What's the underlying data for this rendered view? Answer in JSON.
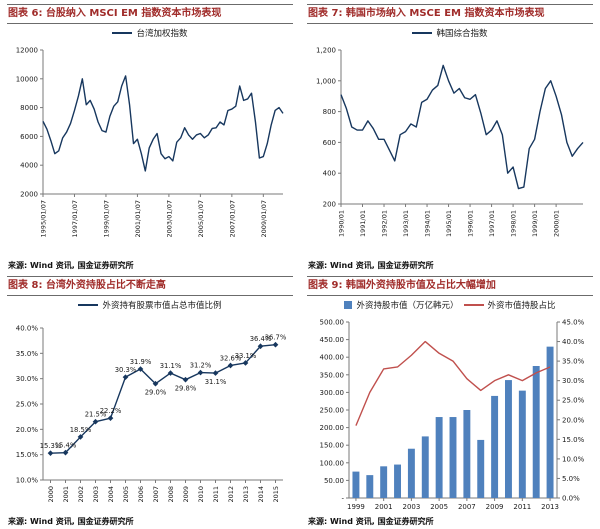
{
  "colors": {
    "title": "#A02C2A",
    "navy_line": "#17375E",
    "bar_blue": "#4F81BD",
    "red_line": "#C0504D",
    "axis": "#7a7a7a",
    "text": "#1a1a1a"
  },
  "chart_data": [
    {
      "type": "line",
      "header": "图表 6: 台股纳入 MSCI EM 指数资本市场表现",
      "title": "台股纳入 MSCI EM 指数资本市场表现",
      "legend": [
        "台湾加权指数"
      ],
      "source": "来源: Wind 资讯, 国金证券研究所",
      "x": {
        "count": 62,
        "tick_indices": [
          0,
          8,
          16,
          24,
          32,
          40,
          48,
          56
        ],
        "tick_labels": [
          "1995/01/07",
          "1997/01/07",
          "1999/01/07",
          "2001/01/07",
          "2003/01/07",
          "2005/01/07",
          "2007/01/07",
          "2009/01/07"
        ]
      },
      "y_left": {
        "lim": [
          2000,
          12000
        ],
        "tick_values": [
          2000,
          4000,
          6000,
          8000,
          10000,
          12000
        ],
        "tick_labels": [
          "2000",
          "4000",
          "6000",
          "8000",
          "10000",
          "12000"
        ]
      },
      "series": [
        {
          "name": "台湾加权指数",
          "type": "line",
          "axis": "left",
          "color": "navy_line",
          "values": [
            7050,
            6500,
            5700,
            4800,
            5000,
            5900,
            6300,
            6900,
            7800,
            8800,
            10000,
            8200,
            8500,
            7900,
            7000,
            6400,
            6300,
            7400,
            8100,
            8400,
            9500,
            10200,
            8200,
            5500,
            5800,
            4800,
            3600,
            5200,
            5800,
            6200,
            4800,
            4450,
            4600,
            4300,
            5600,
            5900,
            6600,
            6100,
            5800,
            6100,
            6200,
            5900,
            6100,
            6550,
            6600,
            7000,
            6800,
            7800,
            7900,
            8100,
            9500,
            8500,
            8600,
            9000,
            7000,
            4500,
            4600,
            5500,
            6800,
            7800,
            8000,
            7600
          ]
        }
      ]
    },
    {
      "type": "line",
      "header": "图表 7: 韩国市场纳入 MSCE EM 指数资本市场表现",
      "title": "韩国市场纳入 MSCE EM 指数资本市场表现",
      "legend": [
        "韩国综合指数"
      ],
      "source": "来源: Wind 资讯, 国金证券研究所",
      "x": {
        "count": 46,
        "tick_indices": [
          0,
          4,
          8,
          12,
          16,
          20,
          24,
          28,
          32,
          36,
          40
        ],
        "tick_labels": [
          "1990/01",
          "1991/01",
          "1992/01",
          "1993/01",
          "1994/01",
          "1995/01",
          "1996/01",
          "1997/01",
          "1998/01",
          "1999/01",
          "2000/01"
        ]
      },
      "y_left": {
        "lim": [
          200,
          1200
        ],
        "tick_values": [
          200,
          400,
          600,
          800,
          1000,
          1200
        ],
        "tick_labels": [
          "200",
          "400",
          "600",
          "800",
          "1,000",
          "1,200"
        ]
      },
      "series": [
        {
          "name": "韩国综合指数",
          "type": "line",
          "axis": "left",
          "color": "navy_line",
          "values": [
            910,
            820,
            700,
            680,
            680,
            740,
            690,
            620,
            620,
            550,
            480,
            650,
            670,
            720,
            700,
            860,
            880,
            940,
            970,
            1100,
            1000,
            920,
            950,
            890,
            880,
            910,
            790,
            650,
            680,
            740,
            650,
            400,
            440,
            300,
            310,
            560,
            620,
            800,
            950,
            1000,
            900,
            780,
            600,
            510,
            560,
            600
          ]
        }
      ]
    },
    {
      "type": "line",
      "header": "图表 8: 台湾外资持股占比不断走高",
      "title": "台湾外资持股占比不断走高",
      "legend": [
        "外资持有股票市值占总市值比例"
      ],
      "source": "来源: Wind 资讯, 国金证券研究所",
      "categories": [
        "2000",
        "2001",
        "2002",
        "2003",
        "2004",
        "2005",
        "2006",
        "2007",
        "2008",
        "2009",
        "2010",
        "2011",
        "2012",
        "2013",
        "2014",
        "2015"
      ],
      "x": {
        "count": 16,
        "tick_indices": [
          0,
          1,
          2,
          3,
          4,
          5,
          6,
          7,
          8,
          9,
          10,
          11,
          12,
          13,
          14,
          15
        ],
        "tick_labels": [
          "2000",
          "2001",
          "2002",
          "2003",
          "2004",
          "2005",
          "2006",
          "2007",
          "2008",
          "2009",
          "2010",
          "2011",
          "2012",
          "2013",
          "2014",
          "2015"
        ]
      },
      "y_left": {
        "lim": [
          10,
          40
        ],
        "tick_values": [
          10,
          15,
          20,
          25,
          30,
          35,
          40
        ],
        "tick_labels": [
          "10.0%",
          "15.0%",
          "20.0%",
          "25.0%",
          "30.0%",
          "35.0%",
          "40.0%"
        ]
      },
      "series": [
        {
          "name": "外资持有股票市值占总市值比例",
          "type": "line",
          "axis": "left",
          "color": "navy_line",
          "marker": true,
          "values": [
            15.3,
            15.4,
            18.5,
            21.5,
            22.2,
            30.3,
            31.9,
            29.0,
            31.1,
            29.8,
            31.2,
            31.1,
            32.6,
            33.1,
            36.4,
            36.7
          ],
          "labels": [
            "15.3%",
            "15.4%",
            "18.5%",
            "21.5%",
            "22.2%",
            "30.3%",
            "31.9%",
            "29.0%",
            "31.1%",
            "29.8%",
            "31.2%",
            "31.1%",
            "32.6%",
            "33.1%",
            "36.4%",
            "36.7%"
          ]
        }
      ]
    },
    {
      "type": "combo",
      "header": "图表 9: 韩国外资持股市值及占比大幅增加",
      "title": "韩国外资持股市值及占比大幅增加",
      "legend": [
        "外资持股市值（万亿韩元）",
        "外资市值持股占比"
      ],
      "source": "来源: Wind 资讯, 国金证券研究所",
      "categories": [
        "1999",
        "2000",
        "2001",
        "2002",
        "2003",
        "2004",
        "2005",
        "2006",
        "2007",
        "2008",
        "2009",
        "2010",
        "2011",
        "2012",
        "2013"
      ],
      "x": {
        "count": 15,
        "tick_indices": [
          0,
          2,
          4,
          6,
          8,
          10,
          12,
          14
        ],
        "tick_labels": [
          "1999",
          "2001",
          "2003",
          "2005",
          "2007",
          "2009",
          "2011",
          "2013"
        ]
      },
      "y_left": {
        "lim": [
          0,
          500
        ],
        "tick_values": [
          0,
          50,
          100,
          150,
          200,
          250,
          300,
          350,
          400,
          450,
          500
        ],
        "tick_labels": [
          "-",
          "50.00",
          "100.00",
          "150.00",
          "200.00",
          "250.00",
          "300.00",
          "350.00",
          "400.00",
          "450.00",
          "500.00"
        ]
      },
      "y_right": {
        "lim": [
          0,
          45
        ],
        "tick_values": [
          0,
          5,
          10,
          15,
          20,
          25,
          30,
          35,
          40,
          45
        ],
        "tick_labels": [
          "0.0%",
          "5.0%",
          "10.0%",
          "15.0%",
          "20.0%",
          "25.0%",
          "30.0%",
          "35.0%",
          "40.0%",
          "45.0%"
        ]
      },
      "series": [
        {
          "name": "外资持股市值（万亿韩元）",
          "type": "bar",
          "axis": "left",
          "color": "bar_blue",
          "values": [
            75,
            65,
            90,
            95,
            140,
            175,
            230,
            230,
            250,
            165,
            290,
            335,
            305,
            375,
            430
          ]
        },
        {
          "name": "外资市值持股占比",
          "type": "line",
          "axis": "right",
          "color": "red_line",
          "values": [
            18.5,
            27.0,
            33.0,
            33.5,
            36.5,
            40.0,
            37.0,
            35.0,
            30.5,
            27.5,
            30.0,
            31.5,
            30.0,
            32.0,
            33.5
          ]
        }
      ]
    }
  ]
}
